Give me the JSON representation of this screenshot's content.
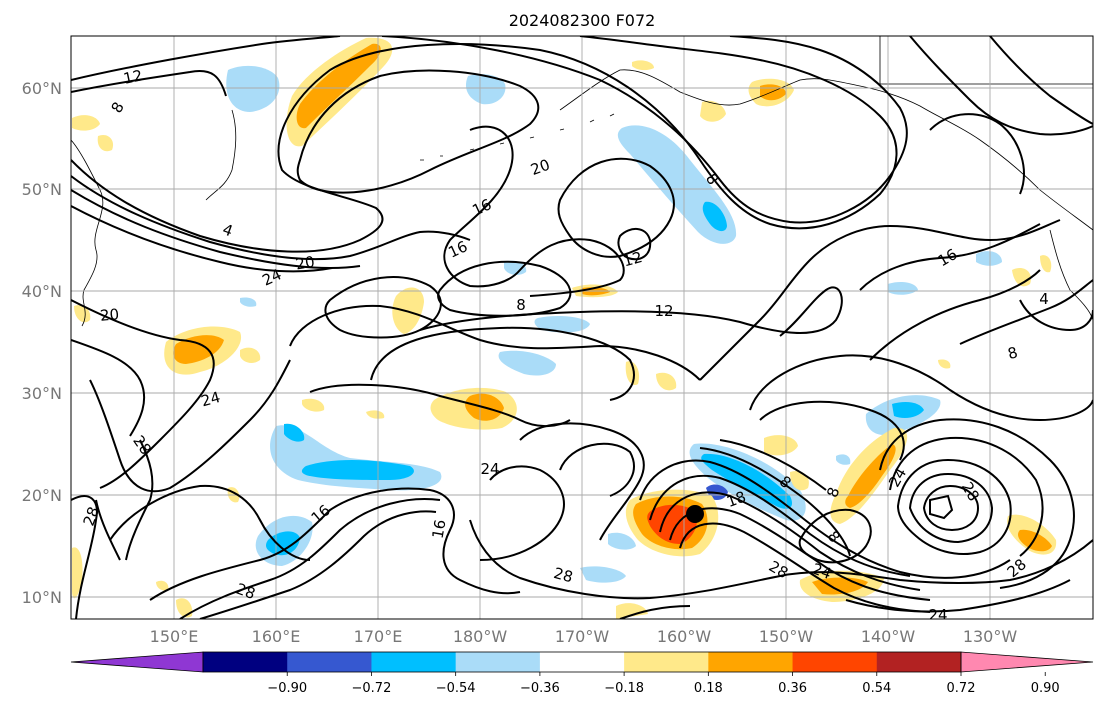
{
  "title": "2024082300 F072",
  "map": {
    "lat_labels": [
      "60°N",
      "50°N",
      "40°N",
      "30°N",
      "20°N",
      "10°N"
    ],
    "lon_labels": [
      "150°E",
      "160°E",
      "170°E",
      "180°W",
      "170°W",
      "160°W",
      "150°W",
      "140°W",
      "130°W"
    ],
    "contour_labels": [
      "12",
      "8",
      "4",
      "20",
      "8",
      "16",
      "16",
      "12",
      "12",
      "8",
      "16",
      "4",
      "8",
      "24",
      "20",
      "20",
      "24",
      "28",
      "24",
      "8",
      "28",
      "28",
      "24",
      "28",
      "16",
      "16",
      "28",
      "28",
      "24",
      "28",
      "8",
      "8",
      "24",
      "18"
    ],
    "colors": {
      "contour": "#000000",
      "grid": "#aaaaaa",
      "coast": "#000000",
      "marker": "#000000"
    },
    "marker_icon": "storm-center-dot"
  },
  "colorbar": {
    "ticks": [
      "−0.90",
      "−0.72",
      "−0.54",
      "−0.36",
      "−0.18",
      "0.18",
      "0.36",
      "0.54",
      "0.72",
      "0.90"
    ],
    "colors": [
      "#8f37d3",
      "#000080",
      "#3658d0",
      "#00bfff",
      "#aadcf8",
      "#ffffff",
      "#ffe98a",
      "#ffa500",
      "#ff4500",
      "#b22222",
      "#ff88b0"
    ]
  }
}
